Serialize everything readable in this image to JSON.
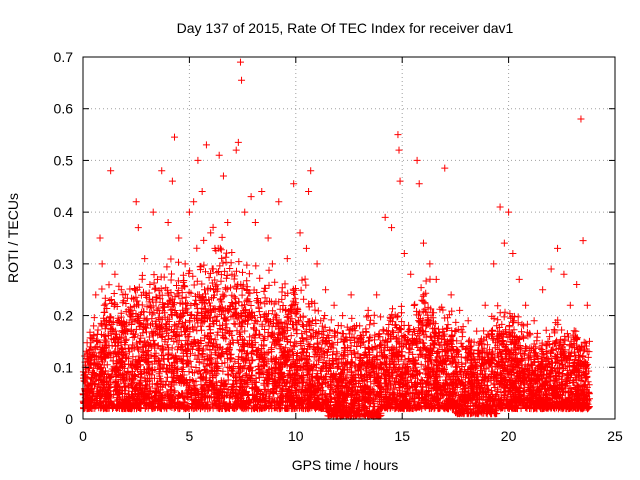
{
  "chart_data": {
    "type": "scatter",
    "title": "Day 137 of 2015, Rate Of TEC Index for receiver dav1",
    "xlabel": "GPS time / hours",
    "ylabel": "ROTI / TECUs",
    "xlim": [
      0,
      25
    ],
    "ylim": [
      0,
      0.7
    ],
    "xticks": [
      0,
      5,
      10,
      15,
      20,
      25
    ],
    "yticks": [
      0,
      0.1,
      0.2,
      0.3,
      0.4,
      0.5,
      0.6,
      0.7
    ],
    "grid": true,
    "marker": "+",
    "marker_color": "#ff0000",
    "series": [
      {
        "points": [
          [
            0.05,
            0.03
          ],
          [
            0.1,
            0.11
          ],
          [
            0.2,
            0.08
          ],
          [
            0.3,
            0.05
          ],
          [
            0.4,
            0.12
          ],
          [
            0.5,
            0.18
          ],
          [
            0.6,
            0.24
          ],
          [
            0.7,
            0.15
          ],
          [
            0.8,
            0.35
          ],
          [
            0.9,
            0.3
          ],
          [
            1.0,
            0.22
          ],
          [
            1.3,
            0.48
          ],
          [
            1.5,
            0.28
          ],
          [
            1.8,
            0.25
          ],
          [
            2.0,
            0.12
          ],
          [
            2.3,
            0.21
          ],
          [
            2.5,
            0.42
          ],
          [
            2.6,
            0.37
          ],
          [
            2.9,
            0.31
          ],
          [
            3.3,
            0.4
          ],
          [
            3.5,
            0.27
          ],
          [
            3.7,
            0.48
          ],
          [
            4.0,
            0.38
          ],
          [
            4.2,
            0.46
          ],
          [
            4.3,
            0.545
          ],
          [
            4.5,
            0.35
          ],
          [
            4.8,
            0.3
          ],
          [
            5.0,
            0.4
          ],
          [
            5.2,
            0.42
          ],
          [
            5.4,
            0.5
          ],
          [
            5.6,
            0.44
          ],
          [
            5.8,
            0.53
          ],
          [
            6.0,
            0.36
          ],
          [
            6.2,
            0.33
          ],
          [
            6.4,
            0.51
          ],
          [
            6.6,
            0.47
          ],
          [
            6.8,
            0.38
          ],
          [
            7.0,
            0.28
          ],
          [
            7.2,
            0.52
          ],
          [
            7.3,
            0.535
          ],
          [
            7.4,
            0.69
          ],
          [
            7.45,
            0.655
          ],
          [
            7.6,
            0.4
          ],
          [
            7.9,
            0.43
          ],
          [
            8.1,
            0.38
          ],
          [
            8.4,
            0.44
          ],
          [
            8.7,
            0.35
          ],
          [
            8.9,
            0.3
          ],
          [
            9.2,
            0.42
          ],
          [
            9.6,
            0.31
          ],
          [
            9.9,
            0.455
          ],
          [
            10.2,
            0.36
          ],
          [
            10.5,
            0.33
          ],
          [
            10.6,
            0.44
          ],
          [
            10.7,
            0.48
          ],
          [
            11.0,
            0.3
          ],
          [
            11.4,
            0.25
          ],
          [
            11.8,
            0.22
          ],
          [
            12.2,
            0.2
          ],
          [
            12.6,
            0.24
          ],
          [
            13.0,
            0.18
          ],
          [
            13.4,
            0.21
          ],
          [
            13.8,
            0.24
          ],
          [
            14.2,
            0.39
          ],
          [
            14.5,
            0.37
          ],
          [
            14.8,
            0.55
          ],
          [
            14.85,
            0.52
          ],
          [
            14.9,
            0.46
          ],
          [
            15.1,
            0.32
          ],
          [
            15.4,
            0.28
          ],
          [
            15.7,
            0.5
          ],
          [
            15.8,
            0.455
          ],
          [
            16.0,
            0.34
          ],
          [
            16.3,
            0.3
          ],
          [
            16.6,
            0.27
          ],
          [
            17.0,
            0.485
          ],
          [
            17.3,
            0.24
          ],
          [
            17.7,
            0.21
          ],
          [
            18.1,
            0.19
          ],
          [
            18.5,
            0.17
          ],
          [
            18.9,
            0.22
          ],
          [
            19.3,
            0.3
          ],
          [
            19.6,
            0.41
          ],
          [
            19.8,
            0.34
          ],
          [
            20.0,
            0.4
          ],
          [
            20.2,
            0.32
          ],
          [
            20.5,
            0.27
          ],
          [
            20.8,
            0.22
          ],
          [
            21.2,
            0.19
          ],
          [
            21.6,
            0.25
          ],
          [
            22.0,
            0.29
          ],
          [
            22.3,
            0.33
          ],
          [
            22.6,
            0.28
          ],
          [
            22.9,
            0.22
          ],
          [
            23.2,
            0.26
          ],
          [
            23.4,
            0.58
          ],
          [
            23.5,
            0.345
          ],
          [
            23.7,
            0.22
          ],
          [
            23.8,
            0.15
          ]
        ]
      }
    ]
  }
}
